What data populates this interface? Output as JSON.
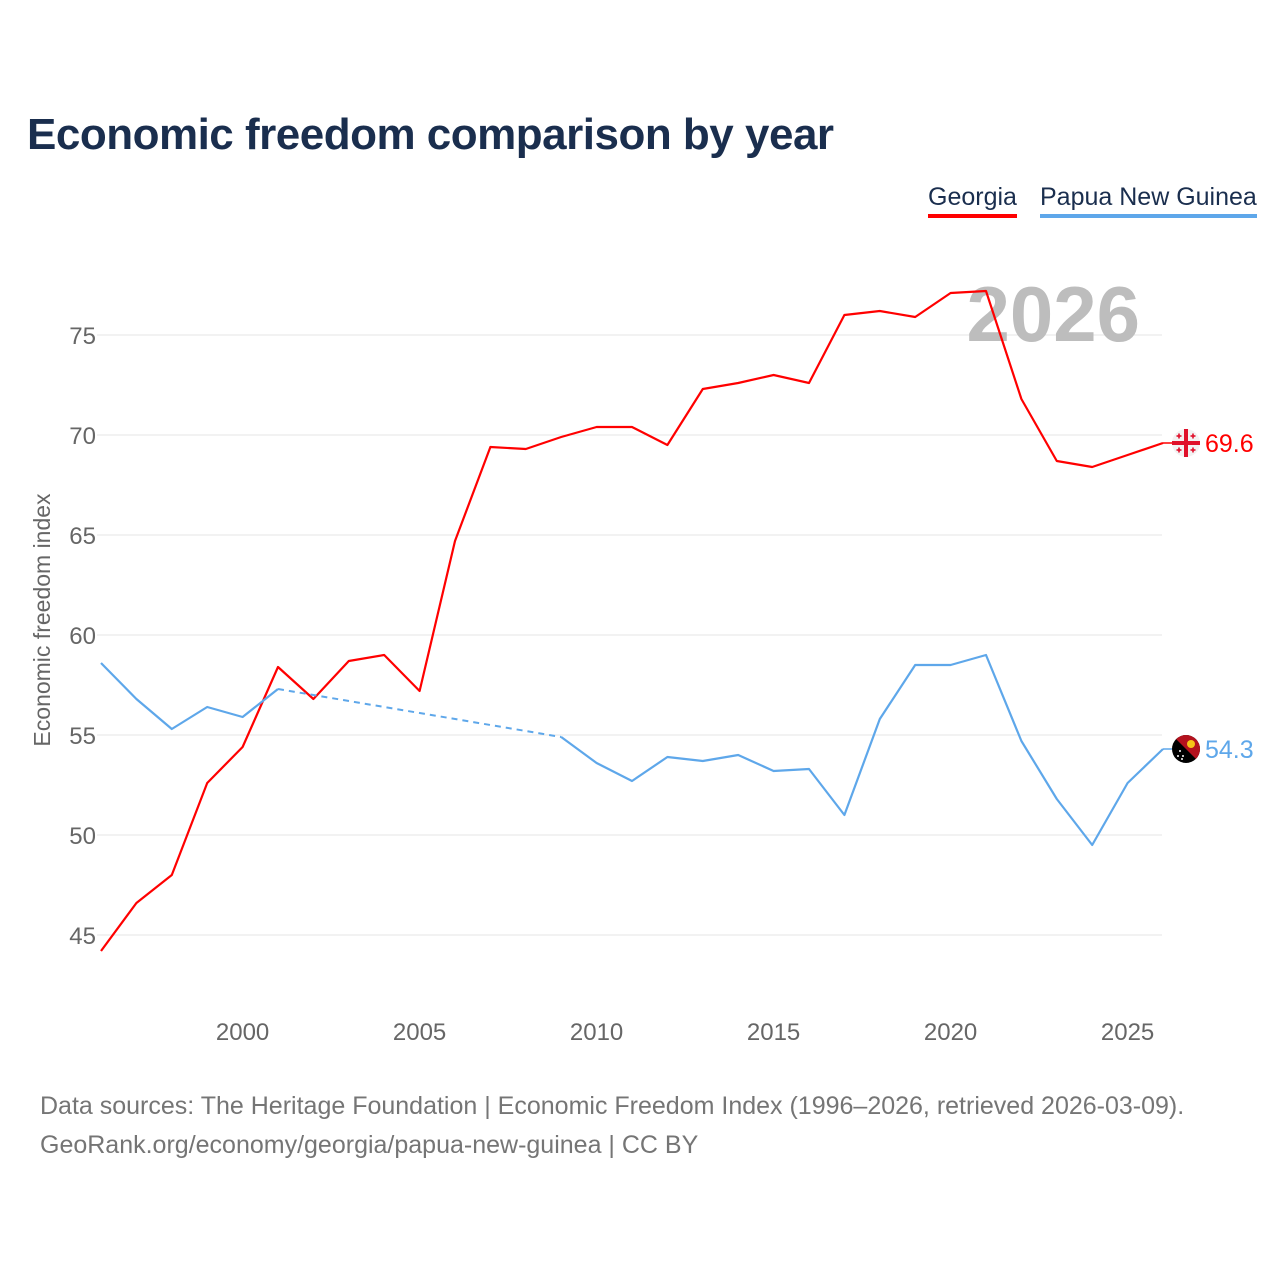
{
  "title": "Economic freedom comparison by year",
  "footer": {
    "line1": "Data sources: The Heritage Foundation | Economic Freedom Index (1996–2026, retrieved 2026-03-09).",
    "line2": "GeoRank.org/economy/georgia/papua-new-guinea | CC BY"
  },
  "chart_data": {
    "type": "line",
    "title": "Economic freedom comparison by year",
    "xlabel": "",
    "ylabel": "Economic freedom index",
    "year_watermark": "2026",
    "xlim": [
      1996,
      2026
    ],
    "ylim": [
      41.5,
      78.5
    ],
    "x_ticks": [
      2000,
      2005,
      2010,
      2015,
      2020,
      2025
    ],
    "y_ticks": [
      45,
      50,
      55,
      60,
      65,
      70,
      75
    ],
    "grid": true,
    "legend_position": "top-right",
    "x": [
      1996,
      1997,
      1998,
      1999,
      2000,
      2001,
      2002,
      2003,
      2004,
      2005,
      2006,
      2007,
      2008,
      2009,
      2010,
      2011,
      2012,
      2013,
      2014,
      2015,
      2016,
      2017,
      2018,
      2019,
      2020,
      2021,
      2022,
      2023,
      2024,
      2025,
      2026
    ],
    "series": [
      {
        "name": "Georgia",
        "color": "#ff0000",
        "end_label": "69.6",
        "flag": "georgia-flag",
        "values": [
          44.2,
          46.6,
          48.0,
          52.6,
          54.4,
          58.4,
          56.8,
          58.7,
          59.0,
          57.2,
          64.7,
          69.4,
          69.3,
          69.9,
          70.4,
          70.4,
          69.5,
          72.3,
          72.6,
          73.0,
          72.6,
          76.0,
          76.2,
          75.9,
          77.1,
          77.2,
          71.8,
          68.7,
          68.4,
          69.0,
          69.6
        ]
      },
      {
        "name": "Papua New Guinea",
        "color": "#5ea7ea",
        "end_label": "54.3",
        "flag": "papua-new-guinea-flag",
        "values": [
          58.6,
          56.8,
          55.3,
          56.4,
          55.9,
          57.3,
          null,
          null,
          null,
          null,
          null,
          null,
          null,
          54.9,
          53.6,
          52.7,
          53.9,
          53.7,
          54.0,
          53.2,
          53.3,
          51.0,
          55.8,
          58.5,
          58.5,
          59.0,
          54.7,
          51.8,
          49.5,
          52.6,
          54.3
        ]
      }
    ]
  }
}
